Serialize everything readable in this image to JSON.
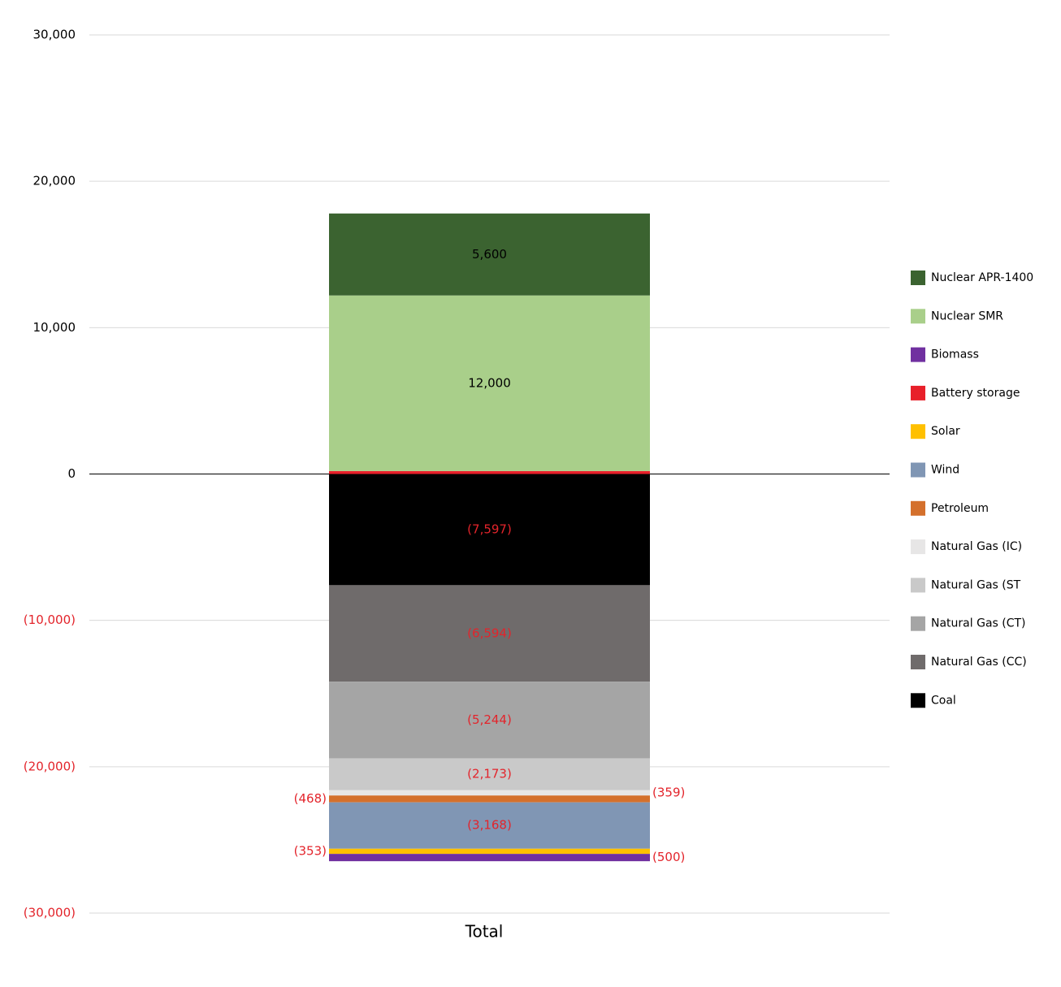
{
  "chart_data": {
    "type": "bar",
    "stacked": true,
    "categories": [
      "Total"
    ],
    "ylim": [
      -30000,
      30000
    ],
    "yticks": [
      {
        "value": 30000,
        "label": "30,000"
      },
      {
        "value": 20000,
        "label": "20,000"
      },
      {
        "value": 10000,
        "label": "10,000"
      },
      0,
      {
        "value": -10000,
        "label": "(10,000)"
      },
      {
        "value": -20000,
        "label": "(20,000)"
      },
      {
        "value": -30000,
        "label": "(30,000)"
      }
    ],
    "grid": true,
    "legend": "right",
    "series": [
      {
        "name": "Coal",
        "color": "#000000",
        "values": [
          -7597
        ],
        "value_labels": [
          "(7,597)"
        ]
      },
      {
        "name": "Natural Gas (CC)",
        "color": "#6f6b6b",
        "values": [
          -6594
        ],
        "value_labels": [
          "(6,594)"
        ]
      },
      {
        "name": "Natural Gas (CT)",
        "color": "#a5a5a5",
        "values": [
          -5244
        ],
        "value_labels": [
          "(5,244)"
        ]
      },
      {
        "name": "Natural Gas (ST",
        "color": "#c9c9c9",
        "values": [
          -2173
        ],
        "value_labels": [
          "(2,173)"
        ]
      },
      {
        "name": "Natural Gas (IC)",
        "color": "#e7e6e6",
        "values": [
          -359
        ],
        "value_labels": [
          "(359)"
        ]
      },
      {
        "name": "Petroleum",
        "color": "#d4702c",
        "values": [
          -468
        ],
        "value_labels": [
          "(468)"
        ]
      },
      {
        "name": "Wind",
        "color": "#8096b4",
        "values": [
          -3168
        ],
        "value_labels": [
          "(3,168)"
        ]
      },
      {
        "name": "Solar",
        "color": "#ffc000",
        "values": [
          -353
        ],
        "value_labels": [
          "(353)"
        ]
      },
      {
        "name": "Battery storage",
        "color": "#e8202a",
        "values": [
          200
        ],
        "value_labels": [
          null
        ]
      },
      {
        "name": "Biomass",
        "color": "#7030a0",
        "values": [
          -500
        ],
        "value_labels": [
          "(500)"
        ]
      },
      {
        "name": "Nuclear SMR",
        "color": "#a9cf8a",
        "values": [
          12000
        ],
        "value_labels": [
          "12,000"
        ]
      },
      {
        "name": "Nuclear APR-1400",
        "color": "#3b6330",
        "values": [
          5600
        ],
        "value_labels": [
          "5,600"
        ]
      }
    ]
  }
}
